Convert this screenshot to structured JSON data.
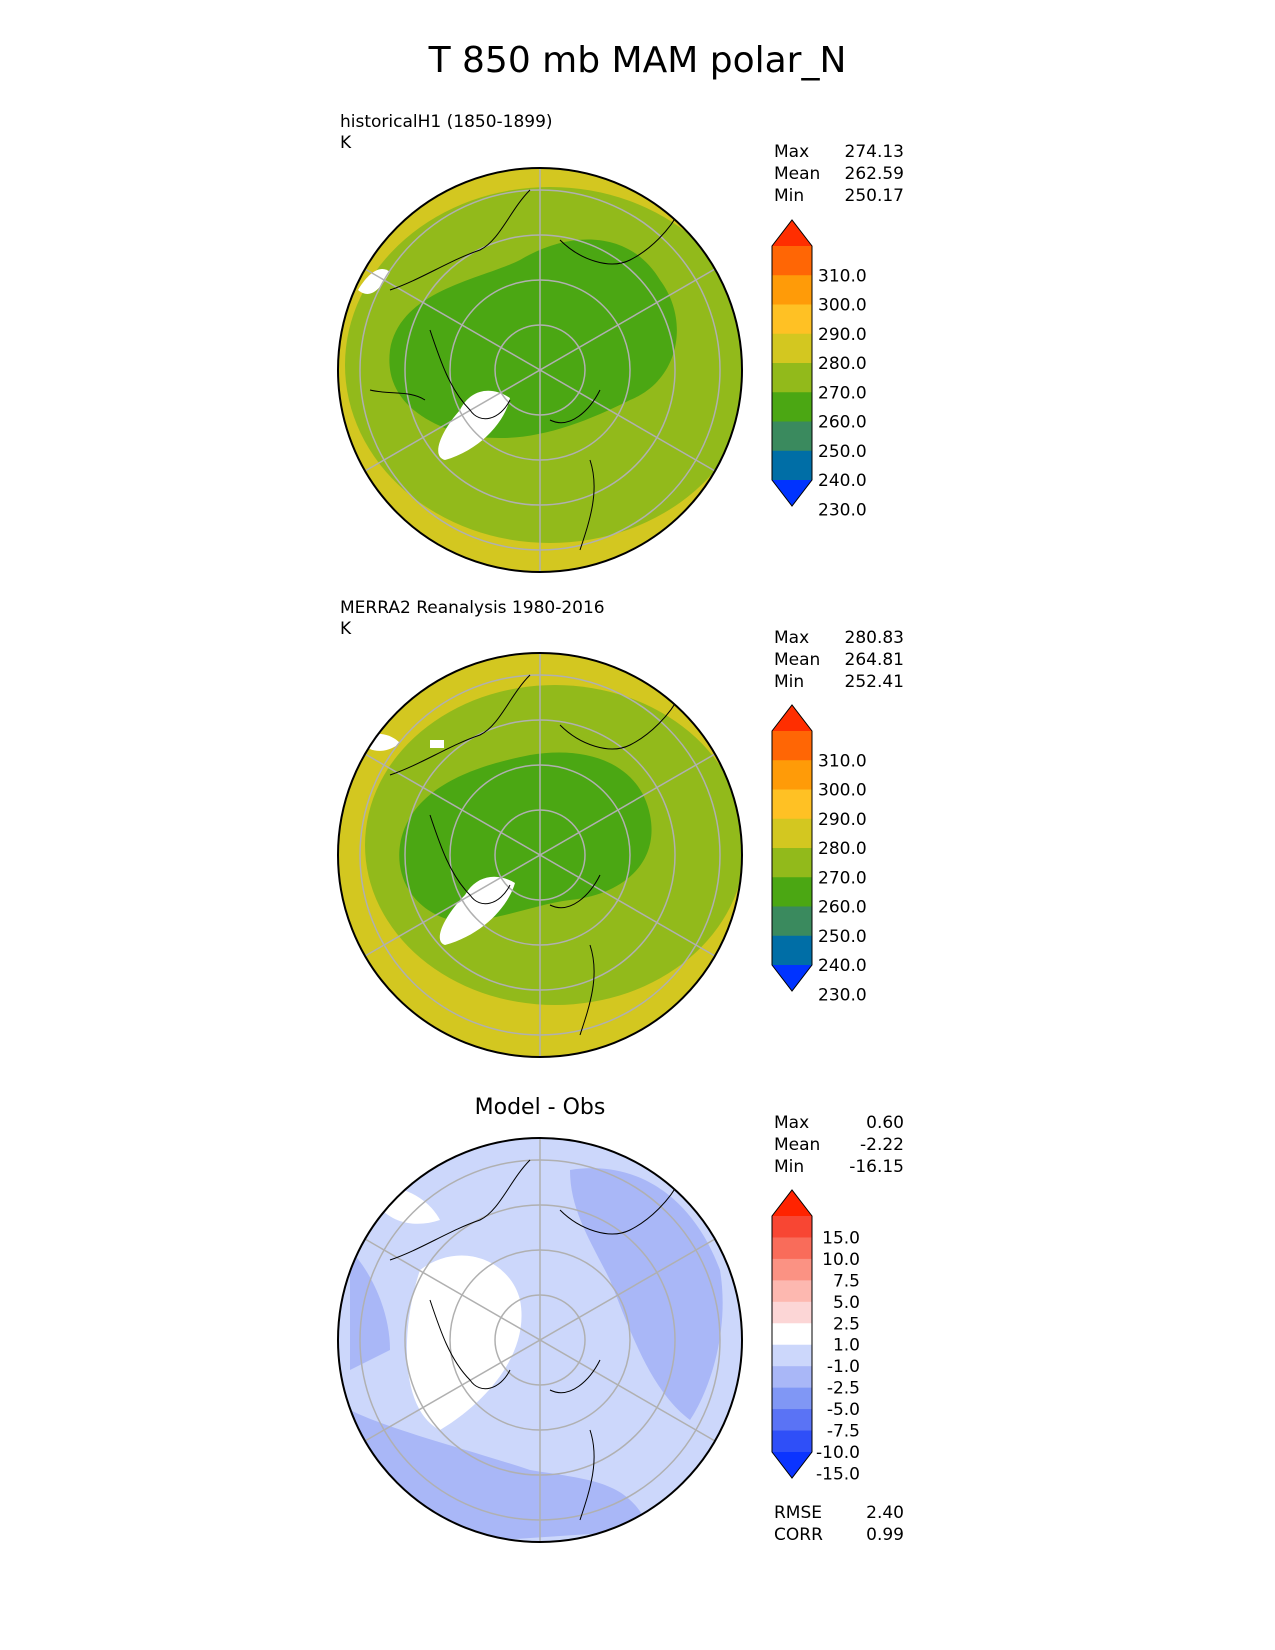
{
  "title": "T 850 mb MAM polar_N",
  "colors": {
    "abs_levels": [
      "#0033ff",
      "#006ea6",
      "#3a8a5e",
      "#4ba713",
      "#92ba1b",
      "#d3c720",
      "#ffc124",
      "#ff9b08",
      "#ff6605",
      "#ff2e00"
    ],
    "diff_levels": [
      "#0b34ff",
      "#2f4ff8",
      "#5a73f5",
      "#8097f5",
      "#a9b7f7",
      "#ccd7fb",
      "#ffffff",
      "#fcd6d6",
      "#fdb8b0",
      "#fb9283",
      "#f96c5a",
      "#f84633",
      "#ff2300"
    ],
    "land_outline": "#000000",
    "grid": "#b0b0b0"
  },
  "panels": [
    {
      "label_line1": "historicalH1 (1850-1899)",
      "label_line2": "K",
      "center_title": "",
      "stats": [
        {
          "name": "Max",
          "value": "274.13"
        },
        {
          "name": "Mean",
          "value": "262.59"
        },
        {
          "name": "Min",
          "value": "250.17"
        }
      ],
      "colorbar_ticks": [
        "310.0",
        "300.0",
        "290.0",
        "280.0",
        "270.0",
        "260.0",
        "250.0",
        "240.0",
        "230.0"
      ]
    },
    {
      "label_line1": "MERRA2 Reanalysis 1980-2016",
      "label_line2": "K",
      "center_title": "",
      "stats": [
        {
          "name": "Max",
          "value": "280.83"
        },
        {
          "name": "Mean",
          "value": "264.81"
        },
        {
          "name": "Min",
          "value": "252.41"
        }
      ],
      "colorbar_ticks": [
        "310.0",
        "300.0",
        "290.0",
        "280.0",
        "270.0",
        "260.0",
        "250.0",
        "240.0",
        "230.0"
      ]
    },
    {
      "label_line1": "",
      "label_line2": "",
      "center_title": "Model - Obs",
      "stats": [
        {
          "name": "Max",
          "value": "0.60"
        },
        {
          "name": "Mean",
          "value": "-2.22"
        },
        {
          "name": "Min",
          "value": "-16.15"
        }
      ],
      "colorbar_ticks": [
        "15.0",
        "10.0",
        "7.5",
        "5.0",
        "2.5",
        "1.0",
        "-1.0",
        "-2.5",
        "-5.0",
        "-7.5",
        "-10.0",
        "-15.0"
      ],
      "metrics": [
        {
          "name": "RMSE",
          "value": "2.40"
        },
        {
          "name": "CORR",
          "value": "0.99"
        }
      ]
    }
  ],
  "chart_data": {
    "type": "heatmap",
    "title": "T 850 mb MAM polar_N",
    "projection": "north polar stereographic",
    "panels": [
      {
        "name": "historicalH1 (1850-1899)",
        "units": "K",
        "max": 274.13,
        "mean": 262.59,
        "min": 250.17,
        "levels": [
          230,
          240,
          250,
          260,
          270,
          280,
          290,
          300,
          310
        ],
        "extend": "both"
      },
      {
        "name": "MERRA2 Reanalysis 1980-2016",
        "units": "K",
        "max": 280.83,
        "mean": 264.81,
        "min": 252.41,
        "levels": [
          230,
          240,
          250,
          260,
          270,
          280,
          290,
          300,
          310
        ],
        "extend": "both"
      },
      {
        "name": "Model - Obs",
        "max": 0.6,
        "mean": -2.22,
        "min": -16.15,
        "rmse": 2.4,
        "corr": 0.99,
        "levels": [
          -15,
          -10,
          -7.5,
          -5,
          -2.5,
          -1,
          1,
          2.5,
          5,
          7.5,
          10,
          15
        ],
        "extend": "both"
      }
    ]
  }
}
